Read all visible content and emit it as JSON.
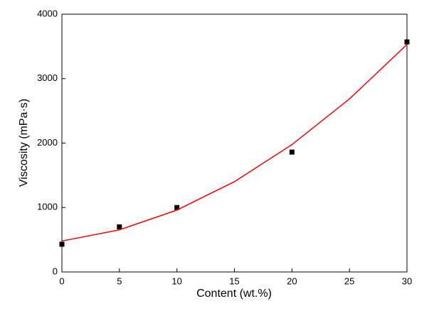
{
  "chart_data": {
    "type": "scatter",
    "x_label": "Content (wt.%)",
    "y_label": "Viscosity (mPa·s)",
    "series": [
      {
        "mode": "markers",
        "color": "#000000",
        "x": [
          0,
          5,
          10,
          20,
          30
        ],
        "values": [
          430,
          700,
          1000,
          1860,
          3570
        ]
      },
      {
        "mode": "line",
        "color": "#ff0000",
        "x": [
          0,
          5,
          10,
          15,
          20,
          25,
          30
        ],
        "values": [
          480,
          653,
          960,
          1401,
          1976,
          2685,
          3530
        ]
      }
    ],
    "xlim": [
      0,
      30
    ],
    "xticks": [
      0,
      5,
      10,
      15,
      20,
      25,
      30
    ],
    "ylim": [
      0,
      4000
    ],
    "yticks": [
      0,
      1000,
      2000,
      3000,
      4000
    ],
    "grid": false
  }
}
